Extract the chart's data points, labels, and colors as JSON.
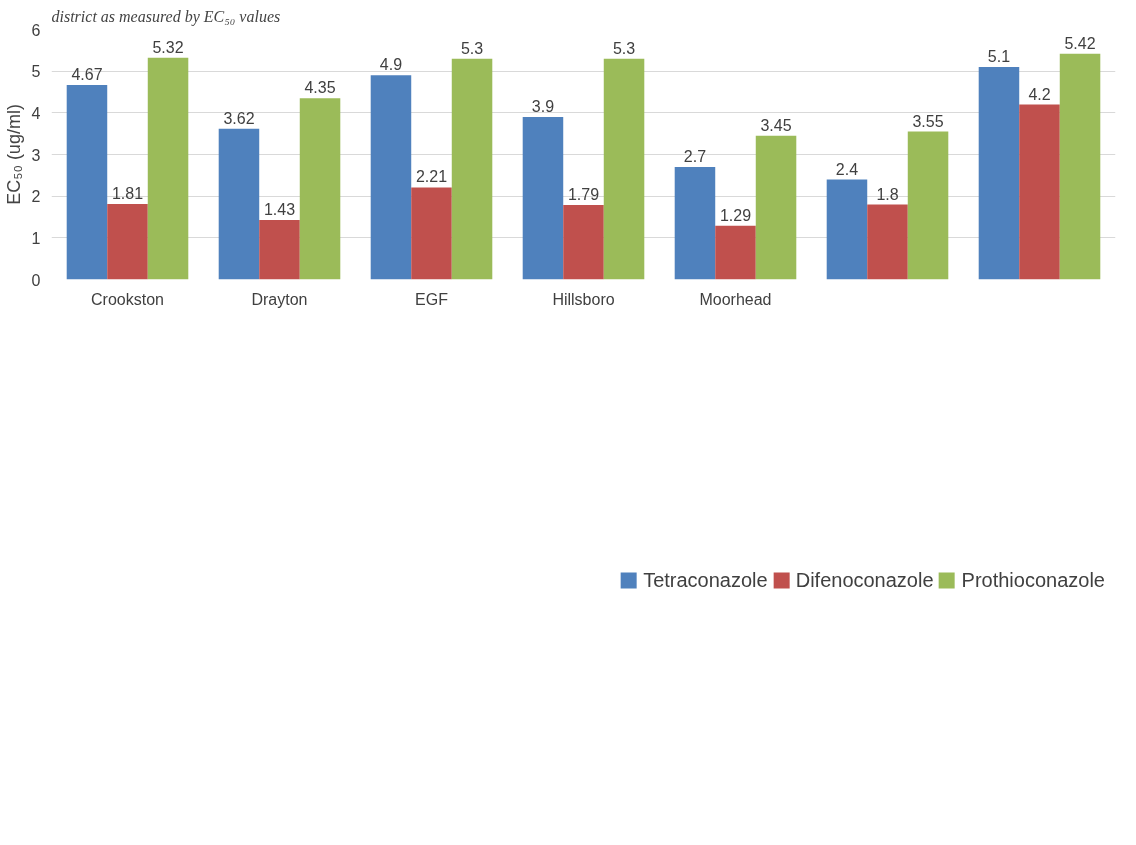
{
  "chart_data": {
    "type": "bar",
    "title": "district as measured by EC₅₀ values",
    "ylabel": "EC₅₀ (ug/ml)",
    "categories": [
      "Crookston",
      "Drayton",
      "EGF",
      "Hillsboro",
      "Moorhead",
      null,
      null
    ],
    "series": [
      {
        "name": "Tetraconazole",
        "color": "#4f81bd",
        "values": [
          4.67,
          3.62,
          4.9,
          3.9,
          2.7,
          2.4,
          5.1
        ]
      },
      {
        "name": "Difenoconazole",
        "color": "#c0504d",
        "values": [
          1.81,
          1.43,
          2.21,
          1.79,
          1.29,
          1.8,
          4.2
        ]
      },
      {
        "name": "Prothioconazole",
        "color": "#9bbb59",
        "values": [
          5.32,
          4.35,
          5.3,
          5.3,
          3.45,
          3.55,
          5.42
        ]
      }
    ],
    "ylim": [
      0,
      6
    ],
    "yticks": [
      0,
      1,
      2,
      3,
      4,
      5,
      6
    ],
    "grid": "y",
    "legend": "bottom",
    "data_labels": true
  }
}
